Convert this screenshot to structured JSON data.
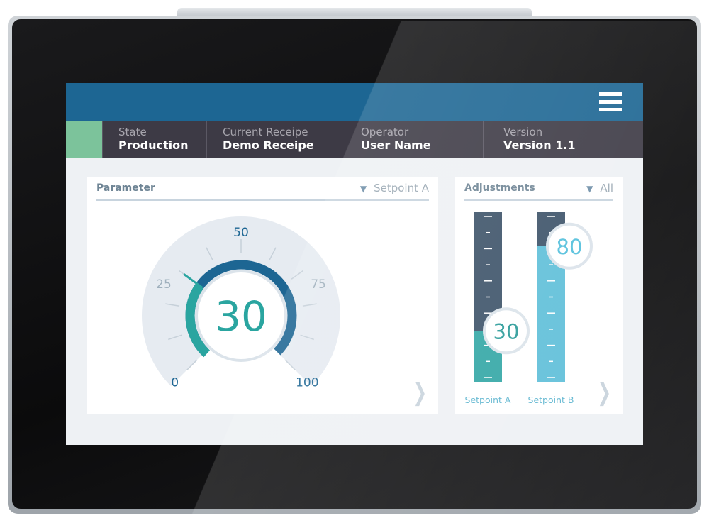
{
  "header": {
    "menu_icon": "hamburger-menu-icon",
    "color": "#1d6693"
  },
  "info_bar": {
    "state_color": "#7cc39b",
    "items": [
      {
        "label": "State",
        "value": "Production"
      },
      {
        "label": "Current Receipe",
        "value": "Demo Receipe"
      },
      {
        "label": "Operator",
        "value": "User Name"
      },
      {
        "label": "Version",
        "value": "Version 1.1"
      }
    ]
  },
  "parameter_panel": {
    "title": "Parameter",
    "selected": "Setpoint A",
    "gauge": {
      "value": 30,
      "display": "30",
      "min": 0,
      "max": 100,
      "tick_labels": [
        "0",
        "25",
        "50",
        "75",
        "100"
      ],
      "value_color": "#2aa5a0",
      "ring_color": "#1d6693"
    }
  },
  "adjustments_panel": {
    "title": "Adjustments",
    "selected": "All",
    "bars": [
      {
        "label": "Setpoint A",
        "value": 30,
        "display": "30",
        "fill": "#33a7a6",
        "color": "#2a9b99"
      },
      {
        "label": "Setpoint B",
        "value": 80,
        "display": "80",
        "fill": "#5fbfd9",
        "color": "#52bfdc"
      }
    ]
  }
}
